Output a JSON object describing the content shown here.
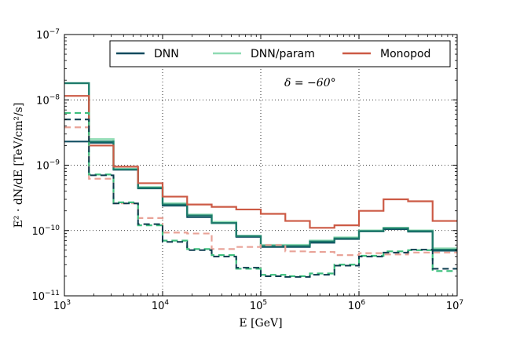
{
  "chart_data": {
    "type": "line",
    "step": "post",
    "xscale": "log",
    "yscale": "log",
    "xlim": [
      1000,
      10000000
    ],
    "ylim": [
      1e-11,
      1e-07
    ],
    "grid": true,
    "legend_loc": "top-right",
    "xlabel": "E [GeV]",
    "ylabel": "E² · dN/dE [TeV/cm²/s]",
    "annotation": "δ = −60°",
    "xticks": [
      {
        "v": 1000,
        "base": "10",
        "exp": "3"
      },
      {
        "v": 10000,
        "base": "10",
        "exp": "4"
      },
      {
        "v": 100000,
        "base": "10",
        "exp": "5"
      },
      {
        "v": 1000000,
        "base": "10",
        "exp": "6"
      },
      {
        "v": 10000000,
        "base": "10",
        "exp": "7"
      }
    ],
    "yticks": [
      {
        "v": 1e-11,
        "base": "10",
        "exp": "−11"
      },
      {
        "v": 1e-10,
        "base": "10",
        "exp": "−10"
      },
      {
        "v": 1e-09,
        "base": "10",
        "exp": "−9"
      },
      {
        "v": 1e-08,
        "base": "10",
        "exp": "−8"
      },
      {
        "v": 1e-07,
        "base": "10",
        "exp": "−7"
      }
    ],
    "bin_edges": [
      1000,
      1778,
      3162,
      5623,
      10000,
      17783,
      31623,
      56234,
      100000,
      177828,
      316228,
      562341,
      1000000,
      1778279,
      3162278,
      5623413,
      10000000
    ],
    "series": [
      {
        "name": "DNN/param",
        "color": "#8fdbb3",
        "style": "solid",
        "width": 2.6,
        "values": [
          1.8e-08,
          2.5e-09,
          8.8e-10,
          4.6e-10,
          2.6e-10,
          1.75e-10,
          1.35e-10,
          8.3e-11,
          6e-11,
          6e-11,
          7e-11,
          7.8e-11,
          1e-10,
          1.1e-10,
          1e-10,
          5.3e-11
        ]
      },
      {
        "name": "DNN",
        "color": "#0c4a5e",
        "style": "solid",
        "width": 2.0,
        "values": [
          2.3e-09,
          2.2e-09,
          8.5e-10,
          4.4e-10,
          2.4e-10,
          1.6e-10,
          1.3e-10,
          8e-11,
          5.6e-11,
          5.6e-11,
          6.5e-11,
          7.4e-11,
          9.7e-11,
          1.05e-10,
          9.6e-11,
          4.9e-11
        ]
      },
      {
        "name": "",
        "color": "#1d7a6b",
        "style": "solid",
        "width": 2.2,
        "values": [
          1.8e-08,
          2.3e-09,
          8.6e-10,
          4.5e-10,
          2.5e-10,
          1.7e-10,
          1.3e-10,
          8.2e-11,
          5.8e-11,
          5.8e-11,
          6.8e-11,
          7.6e-11,
          9.8e-11,
          1.08e-10,
          9.8e-11,
          5.1e-11
        ]
      },
      {
        "name": "Monopod",
        "color": "#cc5a45",
        "style": "solid",
        "width": 2.2,
        "values": [
          1.15e-08,
          2e-09,
          9.5e-10,
          5.3e-10,
          3.3e-10,
          2.5e-10,
          2.3e-10,
          2.1e-10,
          1.8e-10,
          1.4e-10,
          1.1e-10,
          1.2e-10,
          2e-10,
          3e-10,
          2.8e-10,
          1.4e-10
        ]
      },
      {
        "name": "",
        "color": "#e9a398",
        "style": "dashed",
        "width": 2.2,
        "values": [
          3.8e-09,
          6.2e-10,
          2.6e-10,
          1.55e-10,
          9.3e-11,
          9e-11,
          5.2e-11,
          5.6e-11,
          6e-11,
          4.8e-11,
          4.7e-11,
          4.2e-11,
          4.5e-11,
          4.3e-11,
          4.6e-11,
          4.6e-11
        ]
      },
      {
        "name": "",
        "color": "#3dbf7d",
        "style": "dashed",
        "width": 2.2,
        "values": [
          6.3e-09,
          7.2e-10,
          2.7e-10,
          1.2e-10,
          7e-11,
          5.2e-11,
          4.2e-11,
          2.6e-11,
          2.1e-11,
          2e-11,
          2.2e-11,
          3e-11,
          4.1e-11,
          4.8e-11,
          5e-11,
          2.4e-11
        ]
      },
      {
        "name": "",
        "color": "#0c3c4f",
        "style": "dashed",
        "width": 2.0,
        "values": [
          5e-09,
          7e-10,
          2.6e-10,
          1.25e-10,
          6.7e-11,
          5e-11,
          4e-11,
          2.7e-11,
          2e-11,
          1.95e-11,
          2.1e-11,
          2.9e-11,
          4e-11,
          4.6e-11,
          5.1e-11,
          2.6e-11
        ]
      }
    ]
  }
}
